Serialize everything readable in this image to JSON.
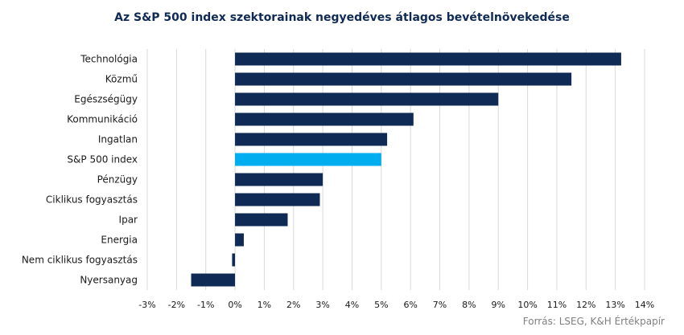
{
  "chart_data": {
    "type": "bar",
    "orientation": "horizontal",
    "title": "Az S&P 500 index szektorainak negyedéves átlagos bevételnövekedése",
    "categories": [
      "Technológia",
      "Közmű",
      "Egészségügy",
      "Kommunikáció",
      "Ingatlan",
      "S&P 500 index",
      "Pénzügy",
      "Ciklikus fogyasztás",
      "Ipar",
      "Energia",
      "Nem ciklikus fogyasztás",
      "Nyersanyag"
    ],
    "values": [
      13.2,
      11.5,
      9.0,
      6.1,
      5.2,
      5.0,
      3.0,
      2.9,
      1.8,
      0.3,
      -0.1,
      -1.5
    ],
    "highlight_category": "S&P 500 index",
    "x_ticks": [
      "-3%",
      "-2%",
      "-1%",
      "0%",
      "1%",
      "2%",
      "3%",
      "4%",
      "5%",
      "6%",
      "7%",
      "8%",
      "9%",
      "10%",
      "11%",
      "12%",
      "13%",
      "14%"
    ],
    "xlim": [
      -3,
      14
    ],
    "xlabel": "",
    "ylabel": "",
    "grid": "vertical",
    "colors": {
      "bar": "#0e2a55",
      "highlight": "#00aeef",
      "grid": "#d9d9d9"
    }
  },
  "source": "Forrás: LSEG, K&H Értékpapír"
}
